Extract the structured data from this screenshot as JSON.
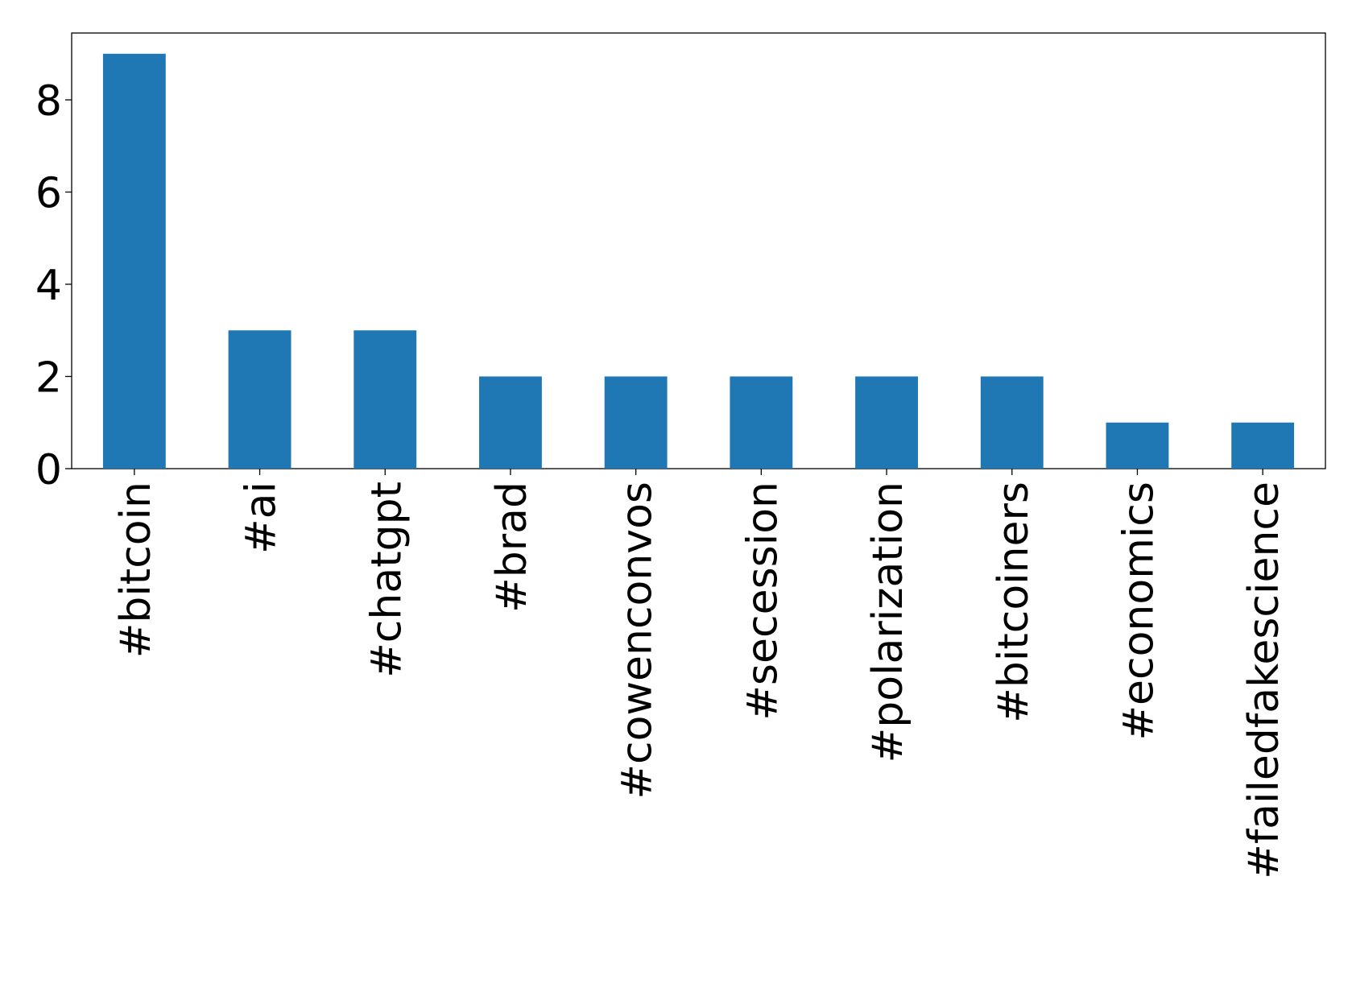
{
  "chart_data": {
    "type": "bar",
    "categories": [
      "#bitcoin",
      "#ai",
      "#chatgpt",
      "#brad",
      "#cowenconvos",
      "#secession",
      "#polarization",
      "#bitcoiners",
      "#economics",
      "#failedfakescience"
    ],
    "values": [
      9,
      3,
      3,
      2,
      2,
      2,
      2,
      2,
      1,
      1
    ],
    "color": "#1f77b4",
    "ylim": [
      0,
      9.45
    ],
    "yticks": [
      0,
      2,
      4,
      6,
      8
    ],
    "grid": false
  }
}
